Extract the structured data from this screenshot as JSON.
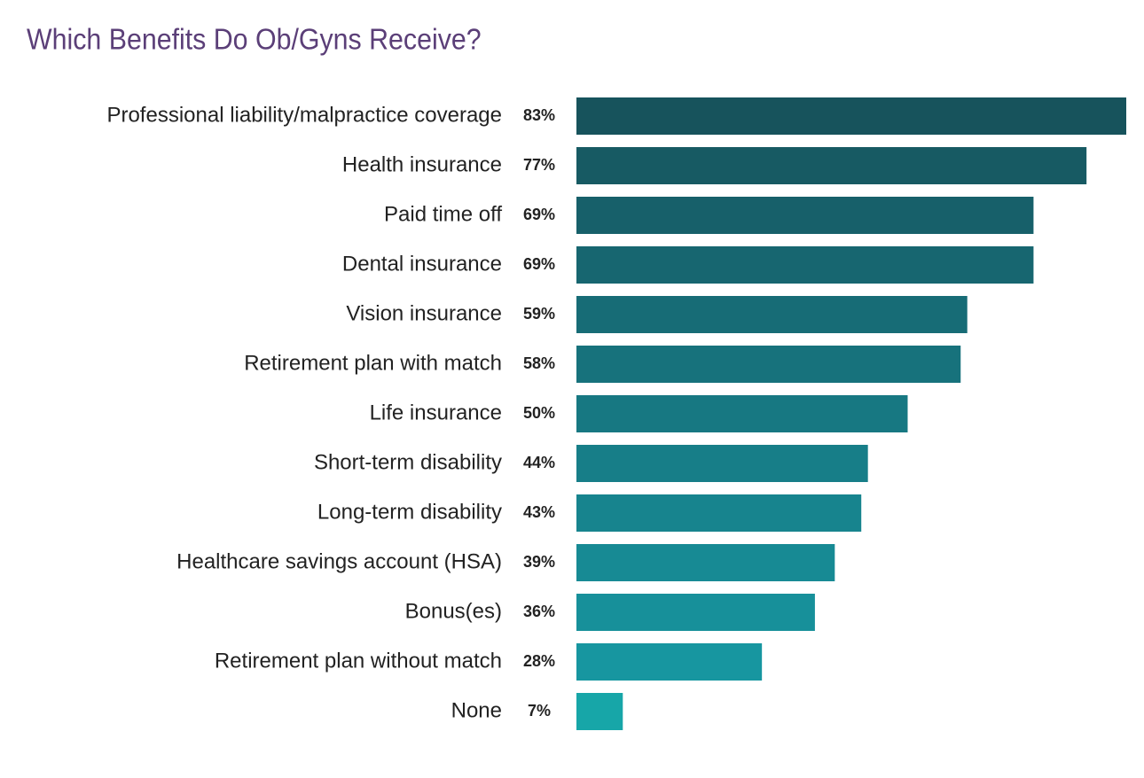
{
  "chart_data": {
    "type": "bar",
    "orientation": "horizontal",
    "title": "Which Benefits Do Ob/Gyns Receive?",
    "categories": [
      "Professional liability/malpractice coverage",
      "Health insurance",
      "Paid time off",
      "Dental insurance",
      "Vision insurance",
      "Retirement plan with match",
      "Life insurance",
      "Short-term disability",
      "Long-term disability",
      "Healthcare savings account (HSA)",
      "Bonus(es)",
      "Retirement plan without match",
      "None"
    ],
    "values": [
      83,
      77,
      69,
      69,
      59,
      58,
      50,
      44,
      43,
      39,
      36,
      28,
      7
    ],
    "value_labels": [
      "83%",
      "77%",
      "69%",
      "69%",
      "59%",
      "58%",
      "50%",
      "44%",
      "43%",
      "39%",
      "36%",
      "28%",
      "7%"
    ],
    "colors": [
      "#17535c",
      "#175a63",
      "#17606a",
      "#176670",
      "#176c76",
      "#17727c",
      "#177882",
      "#177e88",
      "#17848e",
      "#178a94",
      "#17909a",
      "#1796a0",
      "#17a6a8"
    ]
  }
}
